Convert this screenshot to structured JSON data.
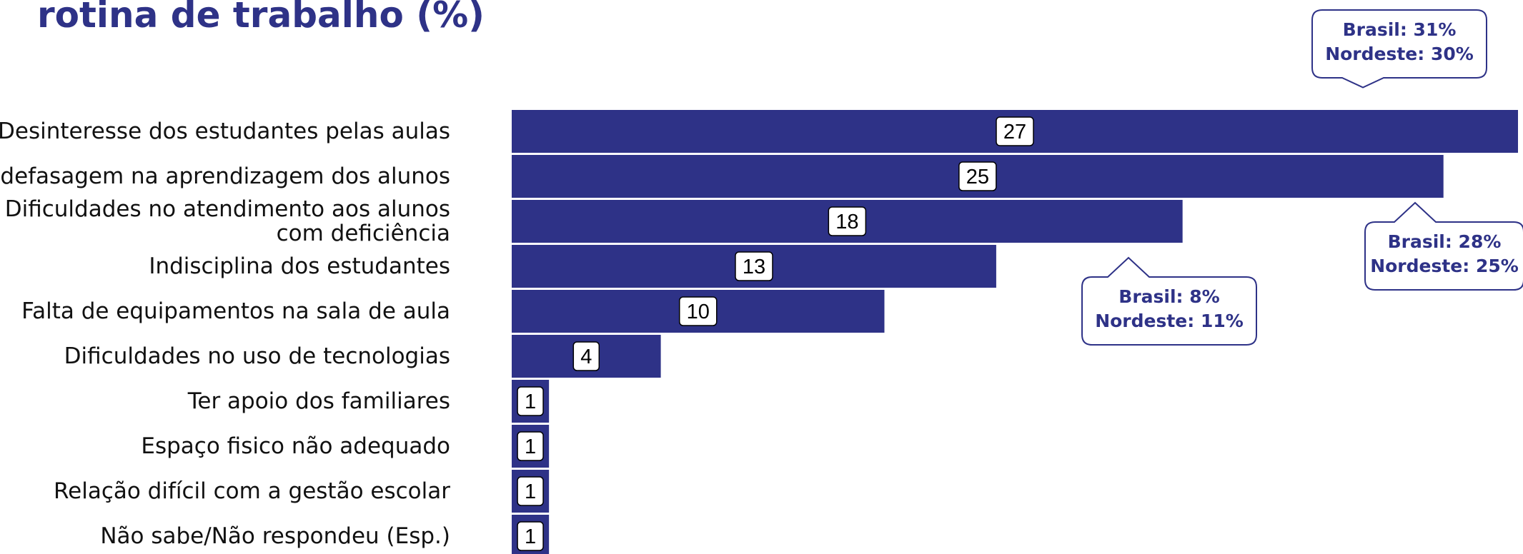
{
  "colors": {
    "bar": "#2e3287",
    "title": "#2e3287",
    "callout_border": "#2e3287",
    "callout_text": "#2e3287",
    "label_text": "#111111"
  },
  "chart_data": {
    "type": "bar",
    "orientation": "horizontal",
    "title": "rotina de trabalho (%)",
    "categories": [
      "Desinteresse dos estudantes pelas aulas",
      "A defasagem na aprendizagem dos alunos",
      "Dificuldades no atendimento aos alunos com deficiência",
      "Indisciplina dos estudantes",
      "Falta de equipamentos na sala de aula",
      "Dificuldades no uso de tecnologias",
      "Ter apoio dos familiares",
      "Espaço fisico não adequado",
      "Relação difícil com a gestão escolar",
      "Não sabe/Não  respondeu (Esp.)"
    ],
    "category_lines": [
      [
        "Desinteresse dos estudantes pelas aulas"
      ],
      [
        "A defasagem na aprendizagem dos alunos"
      ],
      [
        "Dificuldades no atendimento aos alunos",
        "com deficiência"
      ],
      [
        "Indisciplina dos estudantes"
      ],
      [
        "Falta de equipamentos na sala de aula"
      ],
      [
        "Dificuldades no uso de tecnologias"
      ],
      [
        "Ter apoio dos familiares"
      ],
      [
        "Espaço fisico não adequado"
      ],
      [
        "Relação difícil com a gestão escolar"
      ],
      [
        "Não sabe/Não  respondeu (Esp.)"
      ]
    ],
    "values": [
      27,
      25,
      18,
      13,
      10,
      4,
      1,
      1,
      1,
      1
    ],
    "xlim": [
      0,
      27
    ],
    "grid": false,
    "legend": "none",
    "annotations": [
      {
        "category_index": 0,
        "lines": [
          "Brasil: 31%",
          "Nordeste: 30%"
        ],
        "pointer": "down"
      },
      {
        "category_index": 1,
        "lines": [
          "Brasil: 28%",
          "Nordeste: 25%"
        ],
        "pointer": "up"
      },
      {
        "category_index": 3,
        "lines": [
          "Brasil: 8%",
          "Nordeste: 11%"
        ],
        "pointer": "up"
      }
    ]
  }
}
